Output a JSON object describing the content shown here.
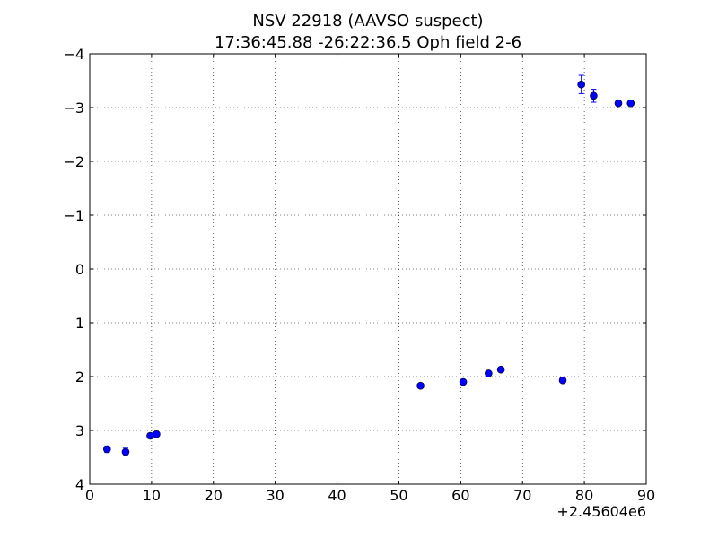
{
  "chart_data": {
    "type": "scatter",
    "title_line1": "NSV 22918 (AAVSO suspect)",
    "title_line2": "17:36:45.88 -26:22:36.5 Oph field 2-6",
    "xlabel": "",
    "ylabel": "",
    "x_offset_label": "+2.45604e6",
    "xlim": [
      0,
      90
    ],
    "ylim": [
      4,
      -4
    ],
    "y_inverted": true,
    "grid": true,
    "x_ticks": [
      0,
      10,
      20,
      30,
      40,
      50,
      60,
      70,
      80,
      90
    ],
    "x_tick_labels": [
      "0",
      "10",
      "20",
      "30",
      "40",
      "50",
      "60",
      "70",
      "80",
      "90"
    ],
    "y_ticks": [
      -4,
      -3,
      -2,
      -1,
      0,
      1,
      2,
      3,
      4
    ],
    "y_tick_labels": [
      "−4",
      "−3",
      "−2",
      "−1",
      "0",
      "1",
      "2",
      "3",
      "4"
    ],
    "marker_color": "#0000ff",
    "points": [
      {
        "x": 2.8,
        "y": 3.35,
        "err": 0.06
      },
      {
        "x": 5.8,
        "y": 3.4,
        "err": 0.07
      },
      {
        "x": 9.8,
        "y": 3.1,
        "err": 0.05
      },
      {
        "x": 10.8,
        "y": 3.07,
        "err": 0.04
      },
      {
        "x": 53.5,
        "y": 2.17,
        "err": 0.04
      },
      {
        "x": 60.4,
        "y": 2.1,
        "err": 0.04
      },
      {
        "x": 64.5,
        "y": 1.94,
        "err": 0.04
      },
      {
        "x": 66.5,
        "y": 1.87,
        "err": 0.04
      },
      {
        "x": 76.5,
        "y": 2.07,
        "err": 0.04
      },
      {
        "x": 79.5,
        "y": -3.43,
        "err": 0.17
      },
      {
        "x": 81.5,
        "y": -3.22,
        "err": 0.12
      },
      {
        "x": 85.5,
        "y": -3.08,
        "err": 0.04
      },
      {
        "x": 87.5,
        "y": -3.08,
        "err": 0.04
      }
    ]
  }
}
